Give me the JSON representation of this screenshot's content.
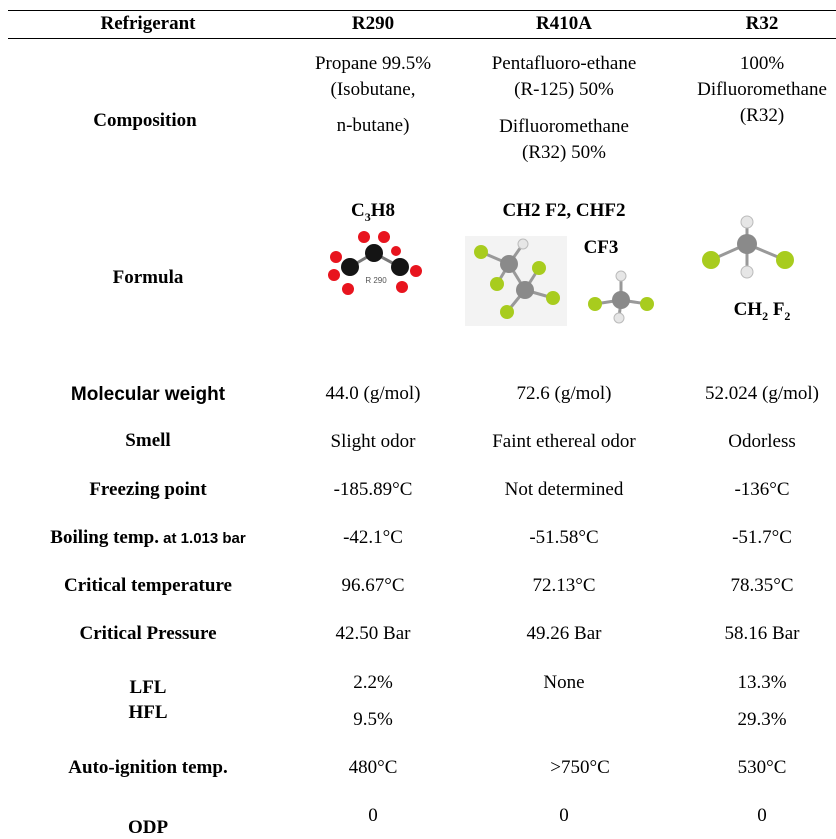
{
  "header": {
    "refrigerant": "Refrigerant",
    "r290": "R290",
    "r410a": "R410A",
    "r32": "R32"
  },
  "composition": {
    "label": "Composition",
    "r290_line1": "Propane 99.5%",
    "r290_line2": "(Isobutane,",
    "r290_line3": "n-butane)",
    "r410a_line1": "Pentafluoro-ethane",
    "r410a_line2": "(R-125) 50%",
    "r410a_line3": "Difluoromethane",
    "r410a_line4": "(R32) 50%",
    "r32_line1": "100%",
    "r32_line2": "Difluoromethane",
    "r32_line3": "(R32)"
  },
  "formula": {
    "label": "Formula",
    "r290_formula_prefix": "C",
    "r290_formula_sub": "3",
    "r290_formula_rest": "H8",
    "r290_image_label": "R 290",
    "r410a_formula_line1": "CH2 F2, CHF2",
    "r410a_formula_line2": "CF3",
    "r32_formula_prefix": "CH",
    "r32_formula_sub1": "2",
    "r32_formula_mid": " F",
    "r32_formula_sub2": "2"
  },
  "molecular_weight": {
    "label": "Molecular weight",
    "r290": "44.0 (g/mol)",
    "r410a": "72.6 (g/mol)",
    "r32": "52.024 (g/mol)"
  },
  "smell": {
    "label": "Smell",
    "r290": "Slight odor",
    "r410a": "Faint ethereal odor",
    "r32": "Odorless"
  },
  "freezing_point": {
    "label": "Freezing point",
    "r290": "-185.89°C",
    "r410a": "Not determined",
    "r32": "-136°C"
  },
  "boiling_temp": {
    "label_main": "Boiling temp.",
    "label_suffix": " at 1.013 bar",
    "r290": "-42.1°C",
    "r410a": "-51.58°C",
    "r32": "-51.7°C"
  },
  "critical_temperature": {
    "label": "Critical temperature",
    "r290": "96.67°C",
    "r410a": "72.13°C",
    "r32": "78.35°C"
  },
  "critical_pressure": {
    "label": "Critical Pressure",
    "r290": "42.50 Bar",
    "r410a": "49.26 Bar",
    "r32": "58.16 Bar"
  },
  "flammability": {
    "label_lfl": "LFL",
    "label_hfl": "HFL",
    "r290_lfl": "2.2%",
    "r290_hfl": "9.5%",
    "r410a": "None",
    "r32_lfl": "13.3%",
    "r32_hfl": "29.3%"
  },
  "auto_ignition": {
    "label": "Auto-ignition temp.",
    "r290": "480°C",
    "r410a": ">750°C",
    "r32": "530°C"
  },
  "odp": {
    "label": "ODP",
    "r290": "0",
    "r410a": "0",
    "r32": "0"
  },
  "colors": {
    "carbon": "#141414",
    "oxygen_red": "#e8141e",
    "fluorine": "#a8cc1e",
    "carbon_gray": "#8a8a8a",
    "hydrogen": "#e6e6e6"
  }
}
